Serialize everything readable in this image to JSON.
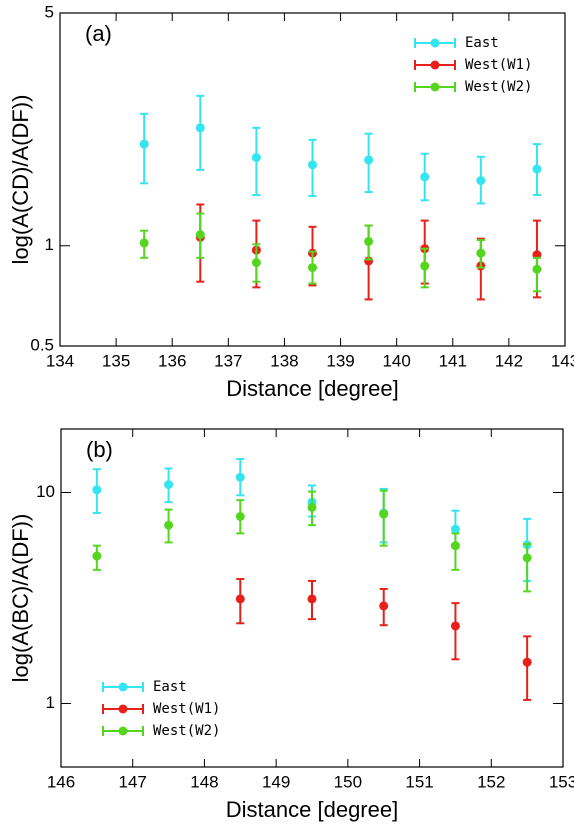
{
  "chart_data": [
    {
      "type": "errorbar",
      "panel_label": "(a)",
      "x_label": "Distance [degree]",
      "y_label": "log(A(CD)/A(DF))",
      "x": [
        135.5,
        136.5,
        137.5,
        138.5,
        139.5,
        140.5,
        141.5,
        142.5
      ],
      "xlim": [
        134,
        143
      ],
      "xticks": [
        134,
        135,
        136,
        137,
        138,
        139,
        140,
        141,
        142,
        143
      ],
      "ylim": [
        0.5,
        5
      ],
      "yticks": [
        0.5,
        1,
        5
      ],
      "log_y": true,
      "legend": "top-right",
      "series": [
        {
          "name": "East",
          "color": "#33e5f0",
          "values": [
            2.02,
            2.26,
            1.84,
            1.75,
            1.81,
            1.61,
            1.57,
            1.7
          ],
          "lower": [
            1.54,
            1.69,
            1.42,
            1.41,
            1.45,
            1.37,
            1.34,
            1.42
          ],
          "upper": [
            2.49,
            2.82,
            2.26,
            2.08,
            2.17,
            1.89,
            1.85,
            2.02
          ]
        },
        {
          "name": "West(W1)",
          "color": "#e8201c",
          "values": [
            null,
            1.06,
            0.97,
            0.95,
            0.9,
            0.98,
            0.87,
            0.94
          ],
          "lower": [
            null,
            0.78,
            0.75,
            0.76,
            0.69,
            0.77,
            0.69,
            0.7
          ],
          "upper": [
            null,
            1.33,
            1.19,
            1.14,
            1.15,
            1.19,
            1.05,
            1.19
          ]
        },
        {
          "name": "West(W2)",
          "color": "#55d61e",
          "values": [
            1.02,
            1.08,
            0.89,
            0.86,
            1.03,
            0.87,
            0.95,
            0.85
          ],
          "lower": [
            0.92,
            0.92,
            0.78,
            0.77,
            0.91,
            0.75,
            0.86,
            0.73
          ],
          "upper": [
            1.11,
            1.25,
            1.01,
            0.96,
            1.15,
            0.98,
            1.04,
            0.92
          ]
        }
      ]
    },
    {
      "type": "errorbar",
      "panel_label": "(b)",
      "x_label": "Distance [degree]",
      "y_label": "log(A(BC)/A(DF))",
      "x": [
        146.5,
        147.5,
        148.5,
        149.5,
        150.5,
        151.5,
        152.5
      ],
      "xlim": [
        146,
        153
      ],
      "xticks": [
        146,
        147,
        148,
        149,
        150,
        151,
        152,
        153
      ],
      "ylim": [
        0.5,
        20
      ],
      "yticks": [
        1,
        10
      ],
      "log_y": true,
      "legend": "bottom-left",
      "series": [
        {
          "name": "East",
          "color": "#33e5f0",
          "values": [
            10.3,
            10.9,
            11.8,
            9.0,
            8.0,
            6.7,
            5.65
          ],
          "lower": [
            8.0,
            9.0,
            9.7,
            7.7,
            5.8,
            5.47,
            3.81
          ],
          "upper": [
            12.9,
            13.0,
            14.4,
            10.8,
            10.4,
            8.2,
            7.5
          ]
        },
        {
          "name": "West(W1)",
          "color": "#e8201c",
          "values": [
            null,
            null,
            3.13,
            3.13,
            2.9,
            2.33,
            1.57
          ],
          "lower": [
            null,
            null,
            2.4,
            2.51,
            2.35,
            1.62,
            1.04
          ],
          "upper": [
            null,
            null,
            3.89,
            3.81,
            3.49,
            2.99,
            2.08
          ]
        },
        {
          "name": "West(W2)",
          "color": "#55d61e",
          "values": [
            5.0,
            7.0,
            7.7,
            8.5,
            7.9,
            5.6,
            4.9
          ],
          "lower": [
            4.3,
            5.8,
            6.4,
            7.0,
            5.6,
            4.3,
            3.4
          ],
          "upper": [
            5.6,
            8.3,
            9.2,
            10.1,
            10.2,
            6.4,
            5.7
          ]
        }
      ]
    }
  ]
}
